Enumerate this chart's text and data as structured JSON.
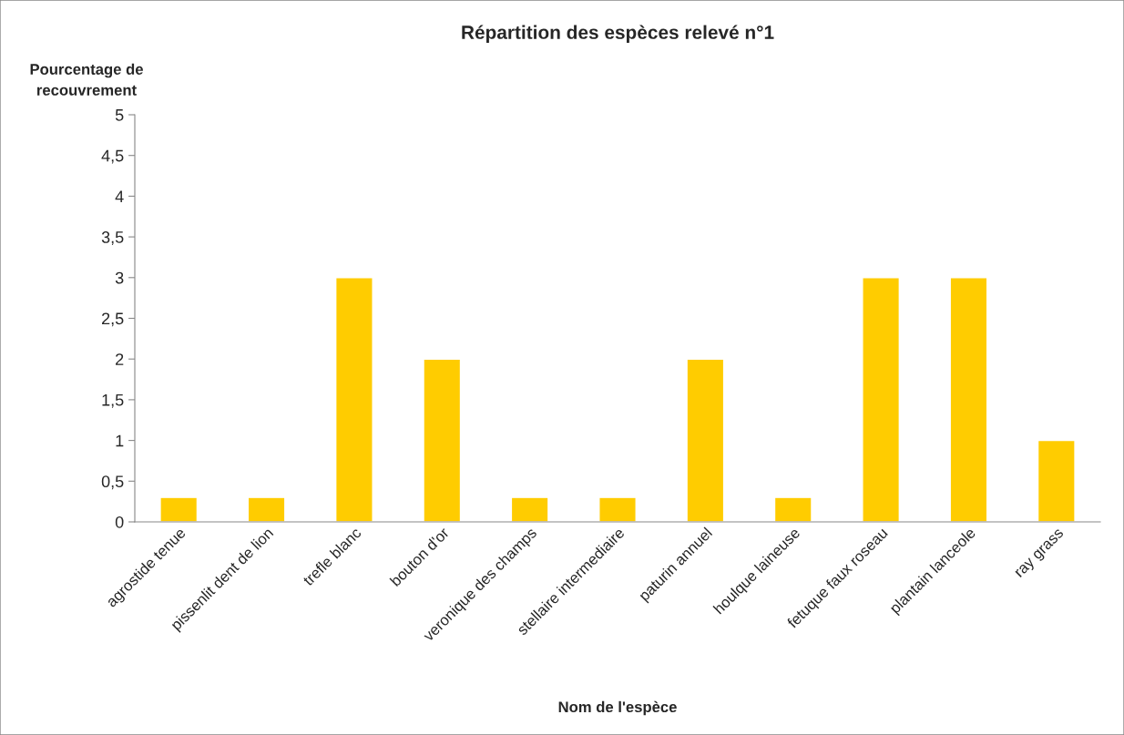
{
  "chart_data": {
    "type": "bar",
    "title": "Répartition des espèces relevé n°1",
    "xlabel": "Nom de l'espèce",
    "ylabel": "Pourcentage de\nrecouvrement",
    "categories": [
      "agrostide tenue",
      "pissenlit dent de lion",
      "trefle blanc",
      "bouton d'or",
      "veronique des champs",
      "stellaire intermediaire",
      "paturin annuel",
      "houlque laineuse",
      "fetuque faux roseau",
      "plantain lanceole",
      "ray grass"
    ],
    "values": [
      0.3,
      0.3,
      3,
      2,
      0.3,
      0.3,
      2,
      0.3,
      3,
      3,
      1
    ],
    "color": "#ffcc00",
    "ylim": [
      0,
      5
    ],
    "yticks": [
      0,
      {
        "value": 0.5,
        "label": "0,5"
      },
      1,
      {
        "value": 1.5,
        "label": "1,5"
      },
      2,
      {
        "value": 2.5,
        "label": "2,5"
      },
      3,
      {
        "value": 3.5,
        "label": "3,5"
      },
      4,
      {
        "value": 4.5,
        "label": "4,5"
      },
      5
    ],
    "grid": false,
    "legend": false
  }
}
